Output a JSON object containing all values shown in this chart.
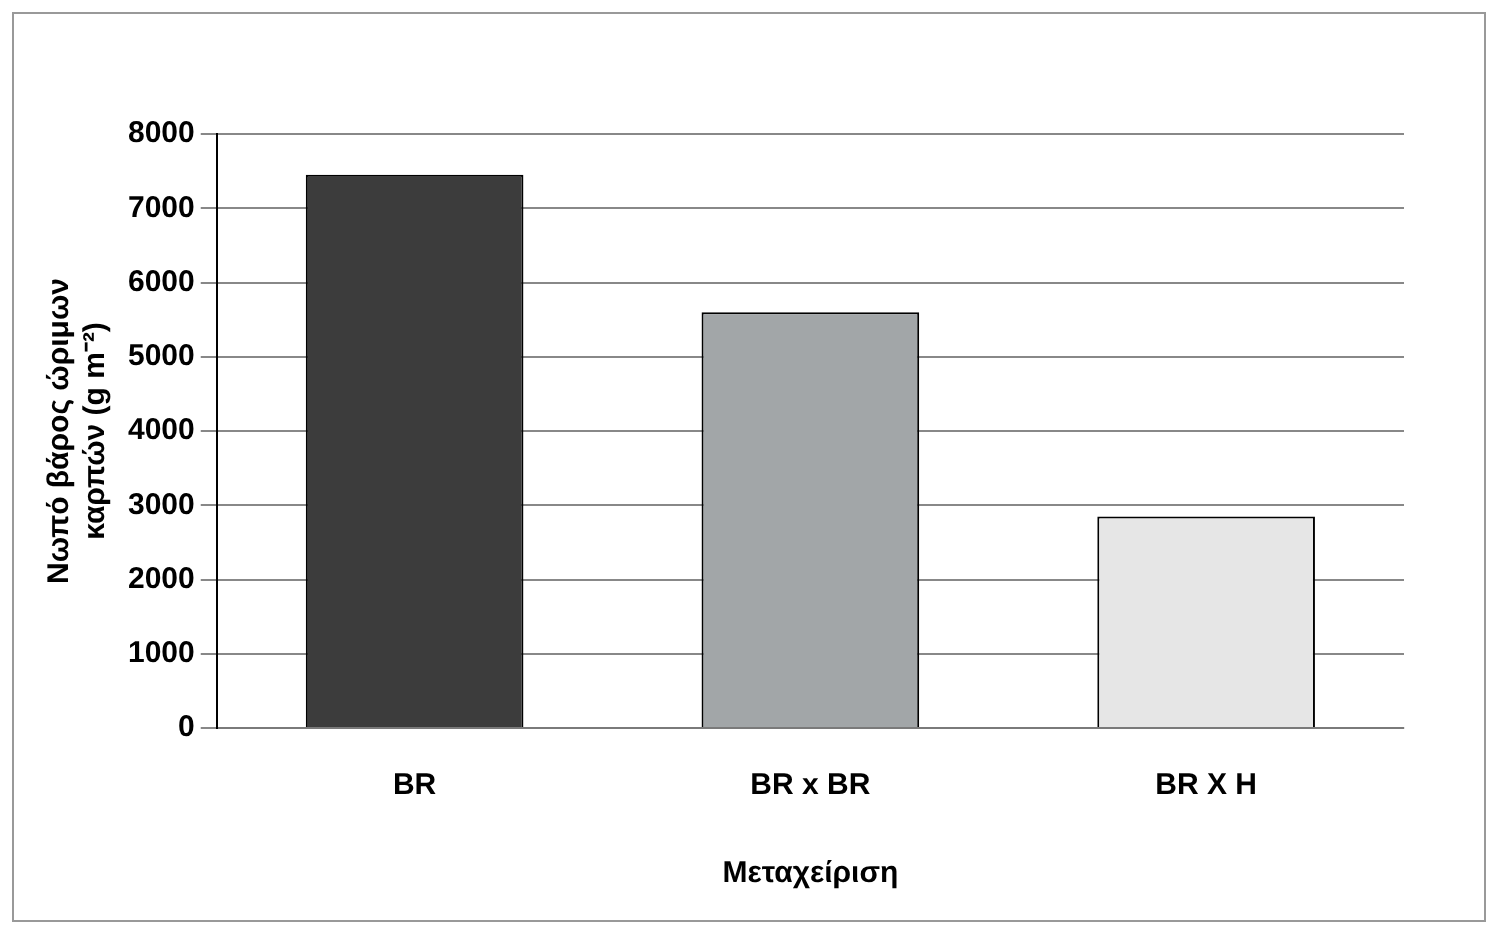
{
  "chart_data": {
    "type": "bar",
    "xlabel": "Μεταχείριση",
    "ylabel": "Νωπό βάρος ώριμων καρπών (g m⁻²)",
    "categories": [
      "BR",
      "BR x BR",
      "BR X H"
    ],
    "values": [
      7450,
      5600,
      2850
    ],
    "colors": [
      "#3c3c3c",
      "#a2a6a8",
      "#e6e6e6"
    ],
    "ylim": [
      0,
      8000
    ],
    "yticks": [
      0,
      1000,
      2000,
      3000,
      4000,
      5000,
      6000,
      7000,
      8000
    ],
    "grid": "y",
    "legend": false
  }
}
